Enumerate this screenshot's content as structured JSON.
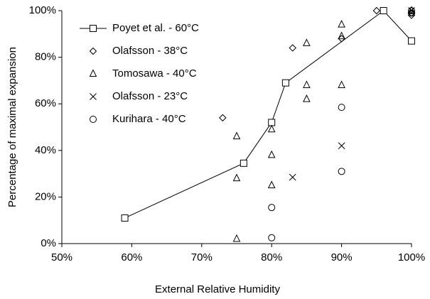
{
  "chart_data": {
    "type": "scatter",
    "xlabel": "External Relative Humidity",
    "ylabel": "Percentage of maximal expansion",
    "xlim": [
      50,
      100
    ],
    "xticks": [
      {
        "value": 50,
        "label": "50%"
      },
      {
        "value": 60,
        "label": "60%"
      },
      {
        "value": 70,
        "label": "70%"
      },
      {
        "value": 80,
        "label": "80%"
      },
      {
        "value": 90,
        "label": "90%"
      },
      {
        "value": 100,
        "label": "100%"
      }
    ],
    "ylim": [
      0,
      100
    ],
    "yticks": [
      {
        "value": 0,
        "label": "0%"
      },
      {
        "value": 20,
        "label": "20%"
      },
      {
        "value": 40,
        "label": "40%"
      },
      {
        "value": 60,
        "label": "60%"
      },
      {
        "value": 80,
        "label": "80%"
      },
      {
        "value": 100,
        "label": "100%"
      }
    ],
    "grid": false,
    "legend": "upper-left",
    "series": [
      {
        "name": "Poyet et al. - 60°C",
        "marker": "square",
        "line": true,
        "color": "#000000",
        "x": [
          59,
          76,
          80,
          82,
          96,
          100
        ],
        "values": [
          11,
          34.5,
          52,
          69,
          100,
          87
        ]
      },
      {
        "name": "Olafsson - 38°C",
        "marker": "diamond",
        "line": false,
        "color": "#000000",
        "x": [
          73,
          83,
          90,
          95,
          100,
          100
        ],
        "values": [
          54,
          84,
          88,
          100,
          98,
          99
        ]
      },
      {
        "name": "Tomosawa - 40°C",
        "marker": "triangle",
        "line": false,
        "color": "#000000",
        "x": [
          75,
          75,
          75,
          80,
          80,
          80,
          85,
          85,
          85,
          90,
          90,
          90,
          100
        ],
        "values": [
          46,
          28,
          2,
          49,
          38,
          25,
          86,
          68,
          62,
          94,
          89,
          68,
          100
        ]
      },
      {
        "name": "Olafsson - 23°C",
        "marker": "cross",
        "line": false,
        "color": "#000000",
        "x": [
          83,
          90,
          100
        ],
        "values": [
          28.5,
          42,
          100
        ]
      },
      {
        "name": "Kurihara - 40°C",
        "marker": "circle",
        "line": false,
        "color": "#000000",
        "x": [
          80,
          80,
          90,
          90,
          100,
          100
        ],
        "values": [
          15.5,
          2.5,
          58.5,
          31,
          100,
          99
        ]
      }
    ]
  }
}
